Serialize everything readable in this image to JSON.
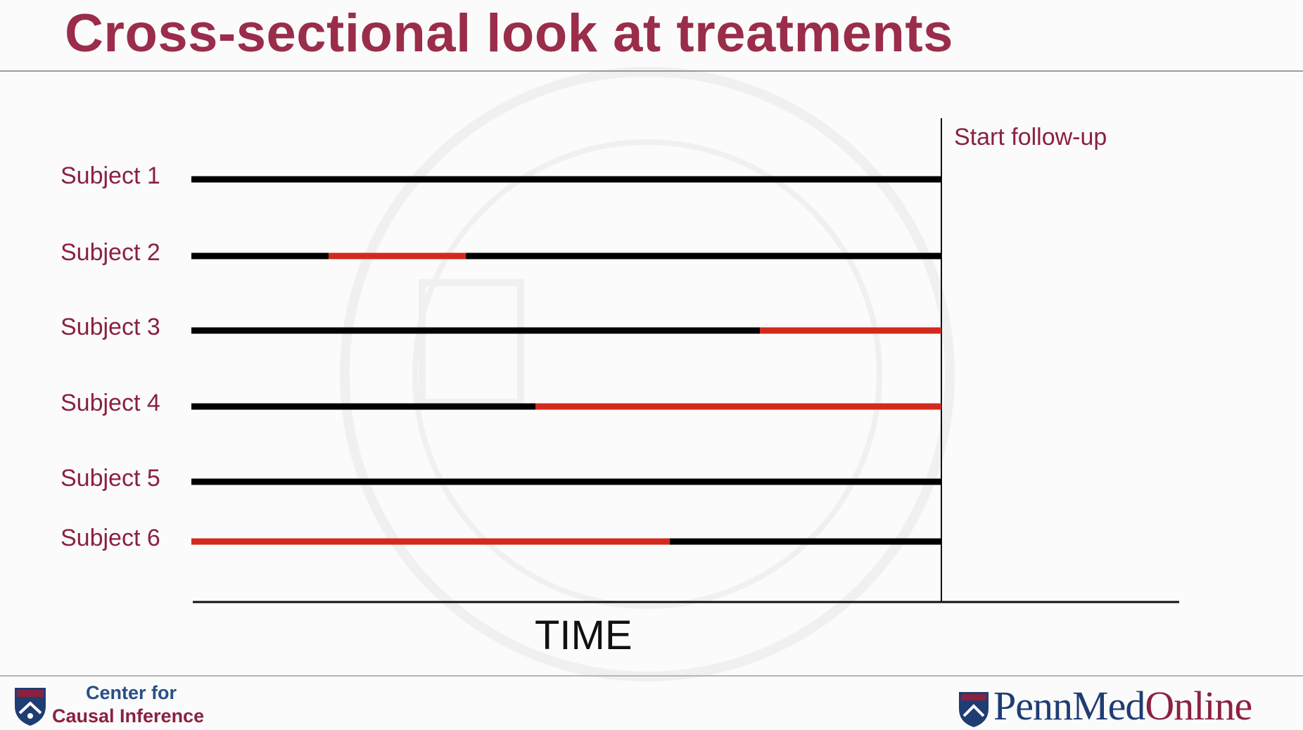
{
  "slide": {
    "title": "Cross-sectional look at treatments",
    "follow_up_label": "Start follow-up",
    "axis_label": "TIME"
  },
  "colors": {
    "untreated": "#000000",
    "treated": "#d22a1e",
    "title": "#9a2d4a",
    "label": "#8a2140"
  },
  "subjects": [
    {
      "label": "Subject 1",
      "segments": [
        {
          "start": 0.0,
          "end": 1.0,
          "state": "untreated"
        }
      ]
    },
    {
      "label": "Subject 2",
      "segments": [
        {
          "start": 0.0,
          "end": 0.183,
          "state": "untreated"
        },
        {
          "start": 0.183,
          "end": 0.366,
          "state": "treated"
        },
        {
          "start": 0.366,
          "end": 1.0,
          "state": "untreated"
        }
      ]
    },
    {
      "label": "Subject 3",
      "segments": [
        {
          "start": 0.0,
          "end": 0.758,
          "state": "untreated"
        },
        {
          "start": 0.758,
          "end": 1.0,
          "state": "treated"
        }
      ]
    },
    {
      "label": "Subject 4",
      "segments": [
        {
          "start": 0.0,
          "end": 0.459,
          "state": "untreated"
        },
        {
          "start": 0.459,
          "end": 1.0,
          "state": "treated"
        }
      ]
    },
    {
      "label": "Subject 5",
      "segments": [
        {
          "start": 0.0,
          "end": 1.0,
          "state": "untreated"
        }
      ]
    },
    {
      "label": "Subject 6",
      "segments": [
        {
          "start": 0.0,
          "end": 0.638,
          "state": "treated"
        },
        {
          "start": 0.638,
          "end": 1.0,
          "state": "untreated"
        }
      ]
    }
  ],
  "footer": {
    "center_line1": "Center for",
    "center_line2": "Causal Inference",
    "brand_penn": "Penn",
    "brand_med": "Med",
    "brand_online": "Online"
  },
  "icons": {
    "left_logo": "penn-shield-icon",
    "right_logo": "penn-shield-icon"
  }
}
